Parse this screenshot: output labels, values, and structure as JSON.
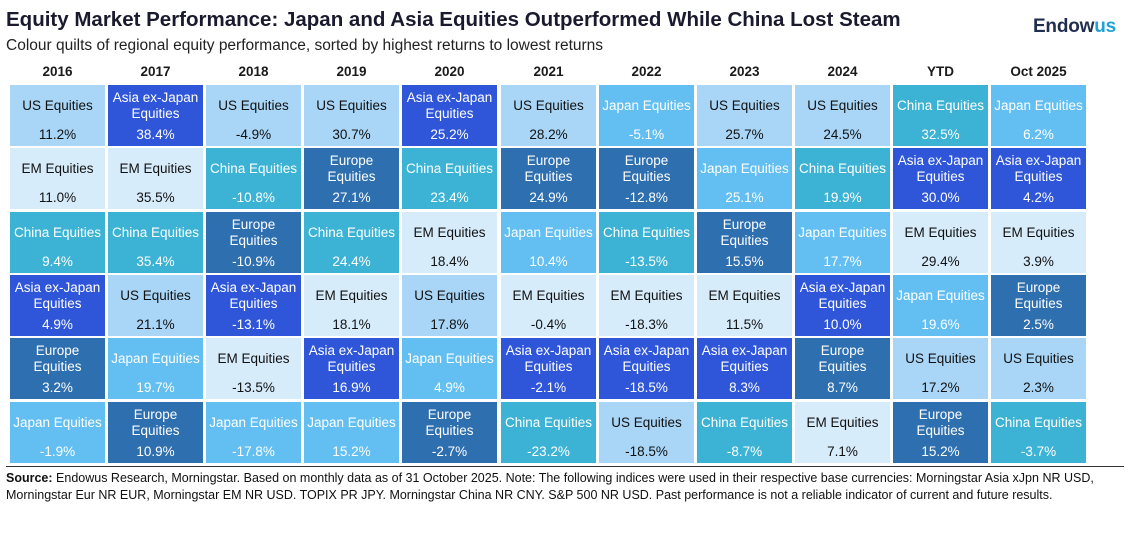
{
  "header": {
    "title": "Equity Market Performance: Japan and Asia Equities Outperformed While China Lost Steam",
    "subtitle": "Colour quilts of regional equity performance, sorted by highest returns to lowest returns",
    "logo_main": "Endow",
    "logo_accent": "us"
  },
  "colors": {
    "US Equities": "#a9d6f7",
    "Asia ex-Japan Equities": "#2f56d8",
    "EM Equities": "#d7ecfb",
    "China Equities": "#3cb3d4",
    "Europe Equities": "#2e6fb0",
    "Japan Equities": "#63bff2"
  },
  "text_colors": {
    "US Equities": "#111111",
    "Asia ex-Japan Equities": "#ffffff",
    "EM Equities": "#111111",
    "China Equities": "#ffffff",
    "Europe Equities": "#ffffff",
    "Japan Equities": "#ffffff"
  },
  "chart_data": {
    "type": "table",
    "title": "Equity Market Performance: Japan and Asia Equities Outperformed While China Lost Steam",
    "columns": [
      {
        "label": "2016",
        "cells": [
          {
            "name": "US Equities",
            "value": "11.2%"
          },
          {
            "name": "EM Equities",
            "value": "11.0%"
          },
          {
            "name": "China Equities",
            "value": "9.4%"
          },
          {
            "name": "Asia ex-Japan Equities",
            "value": "4.9%"
          },
          {
            "name": "Europe Equities",
            "value": "3.2%"
          },
          {
            "name": "Japan Equities",
            "value": "-1.9%"
          }
        ]
      },
      {
        "label": "2017",
        "cells": [
          {
            "name": "Asia ex-Japan Equities",
            "value": "38.4%"
          },
          {
            "name": "EM Equities",
            "value": "35.5%"
          },
          {
            "name": "China Equities",
            "value": "35.4%"
          },
          {
            "name": "US Equities",
            "value": "21.1%"
          },
          {
            "name": "Japan Equities",
            "value": "19.7%"
          },
          {
            "name": "Europe Equities",
            "value": "10.9%"
          }
        ]
      },
      {
        "label": "2018",
        "cells": [
          {
            "name": "US Equities",
            "value": "-4.9%"
          },
          {
            "name": "China Equities",
            "value": "-10.8%"
          },
          {
            "name": "Europe Equities",
            "value": "-10.9%"
          },
          {
            "name": "Asia ex-Japan Equities",
            "value": "-13.1%"
          },
          {
            "name": "EM Equities",
            "value": "-13.5%"
          },
          {
            "name": "Japan Equities",
            "value": "-17.8%"
          }
        ]
      },
      {
        "label": "2019",
        "cells": [
          {
            "name": "US Equities",
            "value": "30.7%"
          },
          {
            "name": "Europe Equities",
            "value": "27.1%"
          },
          {
            "name": "China Equities",
            "value": "24.4%"
          },
          {
            "name": "EM Equities",
            "value": "18.1%"
          },
          {
            "name": "Asia ex-Japan Equities",
            "value": "16.9%"
          },
          {
            "name": "Japan Equities",
            "value": "15.2%"
          }
        ]
      },
      {
        "label": "2020",
        "cells": [
          {
            "name": "Asia ex-Japan Equities",
            "value": "25.2%"
          },
          {
            "name": "China Equities",
            "value": "23.4%"
          },
          {
            "name": "EM Equities",
            "value": "18.4%"
          },
          {
            "name": "US Equities",
            "value": "17.8%"
          },
          {
            "name": "Japan Equities",
            "value": "4.9%"
          },
          {
            "name": "Europe Equities",
            "value": "-2.7%"
          }
        ]
      },
      {
        "label": "2021",
        "cells": [
          {
            "name": "US Equities",
            "value": "28.2%"
          },
          {
            "name": "Europe Equities",
            "value": "24.9%"
          },
          {
            "name": "Japan Equities",
            "value": "10.4%"
          },
          {
            "name": "EM Equities",
            "value": "-0.4%"
          },
          {
            "name": "Asia ex-Japan Equities",
            "value": "-2.1%"
          },
          {
            "name": "China Equities",
            "value": "-23.2%"
          }
        ]
      },
      {
        "label": "2022",
        "cells": [
          {
            "name": "Japan Equities",
            "value": "-5.1%"
          },
          {
            "name": "Europe Equities",
            "value": "-12.8%"
          },
          {
            "name": "China Equities",
            "value": "-13.5%"
          },
          {
            "name": "EM Equities",
            "value": "-18.3%"
          },
          {
            "name": "Asia ex-Japan Equities",
            "value": "-18.5%"
          },
          {
            "name": "US Equities",
            "value": "-18.5%"
          }
        ]
      },
      {
        "label": "2023",
        "cells": [
          {
            "name": "US Equities",
            "value": "25.7%"
          },
          {
            "name": "Japan Equities",
            "value": "25.1%"
          },
          {
            "name": "Europe Equities",
            "value": "15.5%"
          },
          {
            "name": "EM Equities",
            "value": "11.5%"
          },
          {
            "name": "Asia ex-Japan Equities",
            "value": "8.3%"
          },
          {
            "name": "China Equities",
            "value": "-8.7%"
          }
        ]
      },
      {
        "label": "2024",
        "cells": [
          {
            "name": "US Equities",
            "value": "24.5%"
          },
          {
            "name": "China Equities",
            "value": "19.9%"
          },
          {
            "name": "Japan Equities",
            "value": "17.7%"
          },
          {
            "name": "Asia ex-Japan Equities",
            "value": "10.0%"
          },
          {
            "name": "Europe Equities",
            "value": "8.7%"
          },
          {
            "name": "EM Equities",
            "value": "7.1%"
          }
        ]
      },
      {
        "label": "YTD",
        "cells": [
          {
            "name": "China Equities",
            "value": "32.5%"
          },
          {
            "name": "Asia ex-Japan Equities",
            "value": "30.0%"
          },
          {
            "name": "EM Equities",
            "value": "29.4%"
          },
          {
            "name": "Japan Equities",
            "value": "19.6%"
          },
          {
            "name": "US Equities",
            "value": "17.2%"
          },
          {
            "name": "Europe Equities",
            "value": "15.2%"
          }
        ]
      },
      {
        "label": "Oct 2025",
        "cells": [
          {
            "name": "Japan Equities",
            "value": "6.2%"
          },
          {
            "name": "Asia ex-Japan Equities",
            "value": "4.2%"
          },
          {
            "name": "EM Equities",
            "value": "3.9%"
          },
          {
            "name": "Europe Equities",
            "value": "2.5%"
          },
          {
            "name": "US Equities",
            "value": "2.3%"
          },
          {
            "name": "China Equities",
            "value": "-3.7%"
          }
        ]
      }
    ]
  },
  "source": {
    "label": "Source:",
    "text": "Endowus Research, Morningstar. Based on monthly data as of 31 October 2025. Note: The following indices were used in their respective base currencies: Morningstar Asia xJpn NR USD, Morningstar Eur NR EUR, Morningstar EM NR USD. TOPIX PR JPY. Morningstar China NR CNY. S&P 500 NR USD. Past performance is not a reliable indicator of current and future results."
  }
}
